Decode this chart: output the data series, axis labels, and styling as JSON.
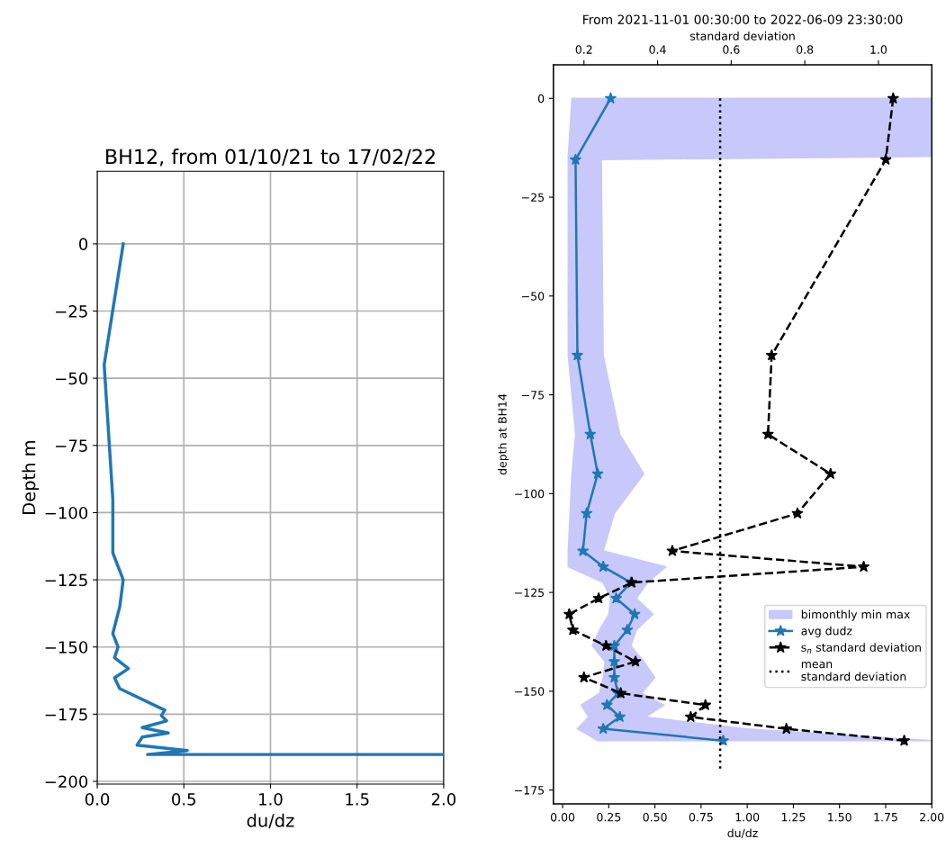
{
  "chart_data": [
    {
      "type": "line",
      "title": "BH12, from 01/10/21 to 17/02/22",
      "xlabel": "du/dz",
      "ylabel": "Depth m",
      "grid": true,
      "xlim": [
        0,
        2
      ],
      "xticks": [
        {
          "value": 0,
          "label": "0.0"
        },
        {
          "value": 0.5,
          "label": "0.5"
        },
        {
          "value": 1,
          "label": "1.0"
        },
        {
          "value": 1.5,
          "label": "1.5"
        },
        {
          "value": 2,
          "label": "2.0"
        }
      ],
      "ylim": [
        -201,
        27
      ],
      "yticks": [
        0,
        {
          "value": -25,
          "label": "−25"
        },
        {
          "value": -50,
          "label": "−50"
        },
        {
          "value": -75,
          "label": "−75"
        },
        {
          "value": -100,
          "label": "−100"
        },
        {
          "value": -125,
          "label": "−125"
        },
        {
          "value": -150,
          "label": "−150"
        },
        {
          "value": -175,
          "label": "−175"
        },
        {
          "value": -200,
          "label": "−200"
        }
      ],
      "series": [
        {
          "color": "#1f77b4",
          "x": [
            0.15,
            0.04,
            0.09,
            0.09,
            0.15,
            0.13,
            0.09,
            0.12,
            0.1,
            0.18,
            0.1,
            0.13,
            0.39,
            0.37,
            0.4,
            0.26,
            0.41,
            0.26,
            0.25,
            0.23,
            0.52,
            0.29,
            2.0
          ],
          "values": [
            0,
            -45,
            -95,
            -115,
            -125,
            -135,
            -145,
            -150,
            -154,
            -158,
            -161.5,
            -165.5,
            -173.5,
            -175.5,
            -177.5,
            -180,
            -182,
            -183.5,
            -184.5,
            -186.5,
            -188.5,
            -190,
            -190
          ]
        }
      ]
    },
    {
      "type": "line",
      "title": "From 2021-11-01 00:30:00 to 2022-06-09 23:30:00",
      "xlabel": "du/dz",
      "ylabel": "depth at BH14",
      "x2label": "standard deviation",
      "legend": "right",
      "xlim": [
        -0.05,
        2
      ],
      "xticks": [
        {
          "value": 0,
          "label": "0.00"
        },
        {
          "value": 0.25,
          "label": "0.25"
        },
        {
          "value": 0.5,
          "label": "0.50"
        },
        {
          "value": 0.75,
          "label": "0.75"
        },
        {
          "value": 1,
          "label": "1.00"
        },
        {
          "value": 1.25,
          "label": "1.25"
        },
        {
          "value": 1.5,
          "label": "1.50"
        },
        {
          "value": 1.75,
          "label": "1.75"
        },
        {
          "value": 2,
          "label": "2.00"
        }
      ],
      "x2lim": [
        0.117,
        1.145
      ],
      "x2ticks": [
        0.2,
        0.4,
        0.6,
        0.8,
        {
          "value": 1,
          "label": "1.0"
        }
      ],
      "ylim": [
        -178.5,
        8.5
      ],
      "yticks": [
        0,
        {
          "value": -25,
          "label": "−25"
        },
        {
          "value": -50,
          "label": "−50"
        },
        {
          "value": -75,
          "label": "−75"
        },
        {
          "value": -100,
          "label": "−100"
        },
        {
          "value": -125,
          "label": "−125"
        },
        {
          "value": -150,
          "label": "−150"
        },
        {
          "value": -175,
          "label": "−175"
        }
      ],
      "series": [
        {
          "name": "bimonthly min max",
          "type": "area",
          "color": "#c8c8fa",
          "x": [
            0.05,
            0.03,
            0.03,
            0.03,
            0.07,
            0.05,
            0.04,
            0.03,
            0.03,
            0.22,
            0.26,
            0.25,
            0.2,
            0.16,
            0.23,
            0.22,
            0.2,
            0.1,
            0.14,
            0.08,
            0.19,
            2.0,
            1.0,
            0.45,
            0.55,
            0.43,
            0.5,
            0.44,
            0.37,
            0.4,
            0.49,
            0.4,
            0.46,
            0.56,
            0.22,
            0.28,
            0.44,
            0.31,
            0.22,
            0.21,
            2.0,
            2.0
          ],
          "values": [
            0,
            -14.7,
            -15.5,
            -65,
            -85,
            -95,
            -105,
            -114.5,
            -118.5,
            -122.5,
            -126.5,
            -130.5,
            -134.5,
            -138.5,
            -142.5,
            -146.5,
            -150.5,
            -153.5,
            -156.5,
            -159.5,
            -162.5,
            -162.5,
            -159.5,
            -156.5,
            -153.5,
            -150.5,
            -146.5,
            -142.5,
            -138.5,
            -134.5,
            -130.5,
            -126.5,
            -122.5,
            -118.5,
            -114.5,
            -105,
            -95,
            -85,
            -65,
            -15.5,
            -14.7,
            0
          ]
        },
        {
          "name": "avg dudz",
          "color": "#1f77b4",
          "marker": "star",
          "line_style": "solid",
          "x": [
            0.26,
            0.07,
            0.08,
            0.15,
            0.19,
            0.13,
            0.11,
            0.22,
            0.37,
            0.29,
            0.39,
            0.35,
            0.28,
            0.28,
            0.28,
            0.3,
            0.24,
            0.31,
            0.22,
            0.87
          ],
          "values": [
            0,
            -15.5,
            -65,
            -85,
            -95,
            -105,
            -114.5,
            -118.5,
            -122.5,
            -126.5,
            -130.5,
            -134.5,
            -138.5,
            -142.5,
            -146.5,
            -150.5,
            -153.5,
            -156.5,
            -159.5,
            -162.5
          ]
        },
        {
          "name": "s$_{n}$ standard deviation",
          "axis": "x2",
          "color": "#000000",
          "marker": "star",
          "line_style": "dashed",
          "x": [
            1.04,
            1.02,
            0.71,
            0.7,
            0.87,
            0.78,
            0.44,
            0.96,
            0.33,
            0.24,
            0.16,
            0.17,
            0.26,
            0.34,
            0.2,
            0.3,
            0.53,
            0.49,
            0.75,
            1.07
          ],
          "values": [
            0,
            -15.5,
            -65,
            -85,
            -95,
            -105,
            -114.5,
            -118.5,
            -122.5,
            -126.5,
            -130.5,
            -134.5,
            -138.5,
            -142.5,
            -146.5,
            -150.5,
            -153.5,
            -156.5,
            -159.5,
            -162.5
          ]
        },
        {
          "name": "mean\nstandard deviation",
          "axis": "x2",
          "color": "#000000",
          "marker": "none",
          "line_style": "dotted",
          "x": [
            0.57,
            0.57
          ],
          "values": [
            0,
            -170
          ]
        }
      ]
    }
  ]
}
